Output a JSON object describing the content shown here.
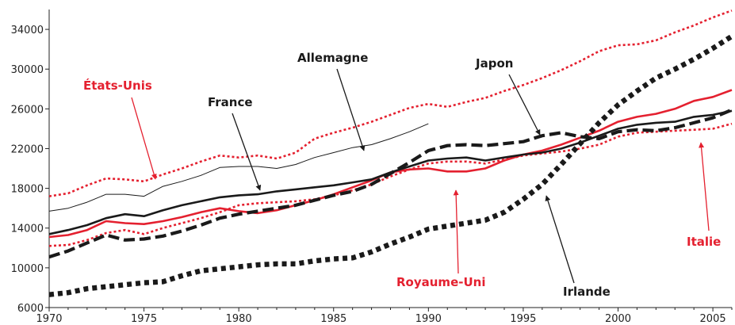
{
  "chart_data": {
    "type": "line",
    "title": "",
    "xlabel": "",
    "ylabel": "",
    "xlim": [
      1970,
      2006
    ],
    "ylim": [
      6000,
      36000
    ],
    "x_ticks": [
      1970,
      1975,
      1980,
      1985,
      1990,
      1995,
      2000,
      2005
    ],
    "y_ticks": [
      6000,
      10000,
      14000,
      18000,
      22000,
      26000,
      30000,
      34000
    ],
    "x_tick_labels": [
      "1970",
      "1975",
      "1980",
      "1985",
      "1990",
      "1995",
      "2000",
      "2005"
    ],
    "y_tick_labels": [
      "6000",
      "10000",
      "14000",
      "18000",
      "22000",
      "26000",
      "30000",
      "34000"
    ],
    "grid": false,
    "legend": "none (inline annotations)",
    "colors": {
      "black": "#1a1a1a",
      "red": "#e4202f"
    },
    "x": [
      1970,
      1971,
      1972,
      1973,
      1974,
      1975,
      1976,
      1977,
      1978,
      1979,
      1980,
      1981,
      1982,
      1983,
      1984,
      1985,
      1986,
      1987,
      1988,
      1989,
      1990,
      1991,
      1992,
      1993,
      1994,
      1995,
      1996,
      1997,
      1998,
      1999,
      2000,
      2001,
      2002,
      2003,
      2004,
      2005,
      2006
    ],
    "series": [
      {
        "name": "États-Unis",
        "color": "#e4202f",
        "style": "dotted",
        "values": [
          17200,
          17500,
          18300,
          19000,
          18900,
          18700,
          19400,
          20000,
          20700,
          21300,
          21100,
          21300,
          21000,
          21600,
          23000,
          23600,
          24100,
          24700,
          25400,
          26100,
          26500,
          26200,
          26700,
          27100,
          27800,
          28400,
          29100,
          29900,
          30800,
          31800,
          32400,
          32500,
          32900,
          33700,
          34400,
          35200,
          35900
        ]
      },
      {
        "name": "Allemagne",
        "color": "#1a1a1a",
        "style": "thin",
        "values": [
          15700,
          16000,
          16600,
          17400,
          17400,
          17200,
          18200,
          18700,
          19300,
          20100,
          20200,
          20200,
          20000,
          20400,
          21100,
          21600,
          22100,
          22400,
          23000,
          23700,
          24500,
          null,
          null,
          null,
          null,
          null,
          null,
          null,
          null,
          null,
          null,
          null,
          null,
          null,
          null,
          null,
          null
        ]
      },
      {
        "name": "France",
        "color": "#1a1a1a",
        "style": "solid",
        "values": [
          13400,
          13800,
          14300,
          15000,
          15400,
          15200,
          15800,
          16300,
          16700,
          17100,
          17300,
          17400,
          17700,
          17900,
          18100,
          18300,
          18600,
          18900,
          19600,
          20200,
          20800,
          21000,
          21100,
          20800,
          21100,
          21400,
          21600,
          22000,
          22600,
          23300,
          24000,
          24400,
          24600,
          24700,
          25200,
          25400,
          25800
        ]
      },
      {
        "name": "Japon",
        "color": "#1a1a1a",
        "style": "dashed",
        "values": [
          11100,
          11700,
          12500,
          13300,
          12800,
          12900,
          13200,
          13700,
          14300,
          15000,
          15400,
          15700,
          16000,
          16300,
          16800,
          17300,
          17700,
          18400,
          19500,
          20600,
          21800,
          22300,
          22400,
          22300,
          22500,
          22700,
          23300,
          23600,
          23200,
          23000,
          23700,
          23900,
          23800,
          24100,
          24600,
          25100,
          25900
        ]
      },
      {
        "name": "Royaume-Uni",
        "color": "#e4202f",
        "style": "solid",
        "values": [
          13100,
          13300,
          13800,
          14700,
          14500,
          14400,
          14700,
          15100,
          15600,
          16000,
          15700,
          15500,
          15800,
          16300,
          16800,
          17400,
          18100,
          18800,
          19600,
          19900,
          20000,
          19700,
          19700,
          20000,
          20800,
          21400,
          21800,
          22400,
          23100,
          23800,
          24700,
          25200,
          25500,
          26000,
          26800,
          27200,
          27900
        ]
      },
      {
        "name": "Italie",
        "color": "#e4202f",
        "style": "dotted",
        "values": [
          12200,
          12300,
          12800,
          13500,
          13800,
          13400,
          14000,
          14500,
          15000,
          15600,
          16300,
          16500,
          16600,
          16700,
          16900,
          17300,
          17800,
          18400,
          19200,
          19900,
          20500,
          20700,
          20700,
          20500,
          20900,
          21300,
          21500,
          21700,
          22000,
          22400,
          23200,
          23600,
          23700,
          23800,
          23900,
          24000,
          24500
        ]
      },
      {
        "name": "Irlande",
        "color": "#1a1a1a",
        "style": "heavy-dotted",
        "values": [
          7300,
          7500,
          7900,
          8100,
          8300,
          8500,
          8600,
          9200,
          9700,
          9900,
          10100,
          10300,
          10400,
          10400,
          10700,
          10900,
          11000,
          11600,
          12400,
          13100,
          13900,
          14200,
          14500,
          14800,
          15600,
          16900,
          18400,
          20400,
          22500,
          24600,
          26400,
          27800,
          29100,
          30000,
          31000,
          32100,
          33300
        ]
      }
    ],
    "annotations": [
      {
        "text": "États-Unis",
        "color": "#e4202f"
      },
      {
        "text": "Allemagne",
        "color": "#1a1a1a"
      },
      {
        "text": "France",
        "color": "#1a1a1a"
      },
      {
        "text": "Japon",
        "color": "#1a1a1a"
      },
      {
        "text": "Royaume-Uni",
        "color": "#e4202f"
      },
      {
        "text": "Irlande",
        "color": "#1a1a1a"
      },
      {
        "text": "Italie",
        "color": "#e4202f"
      }
    ]
  }
}
